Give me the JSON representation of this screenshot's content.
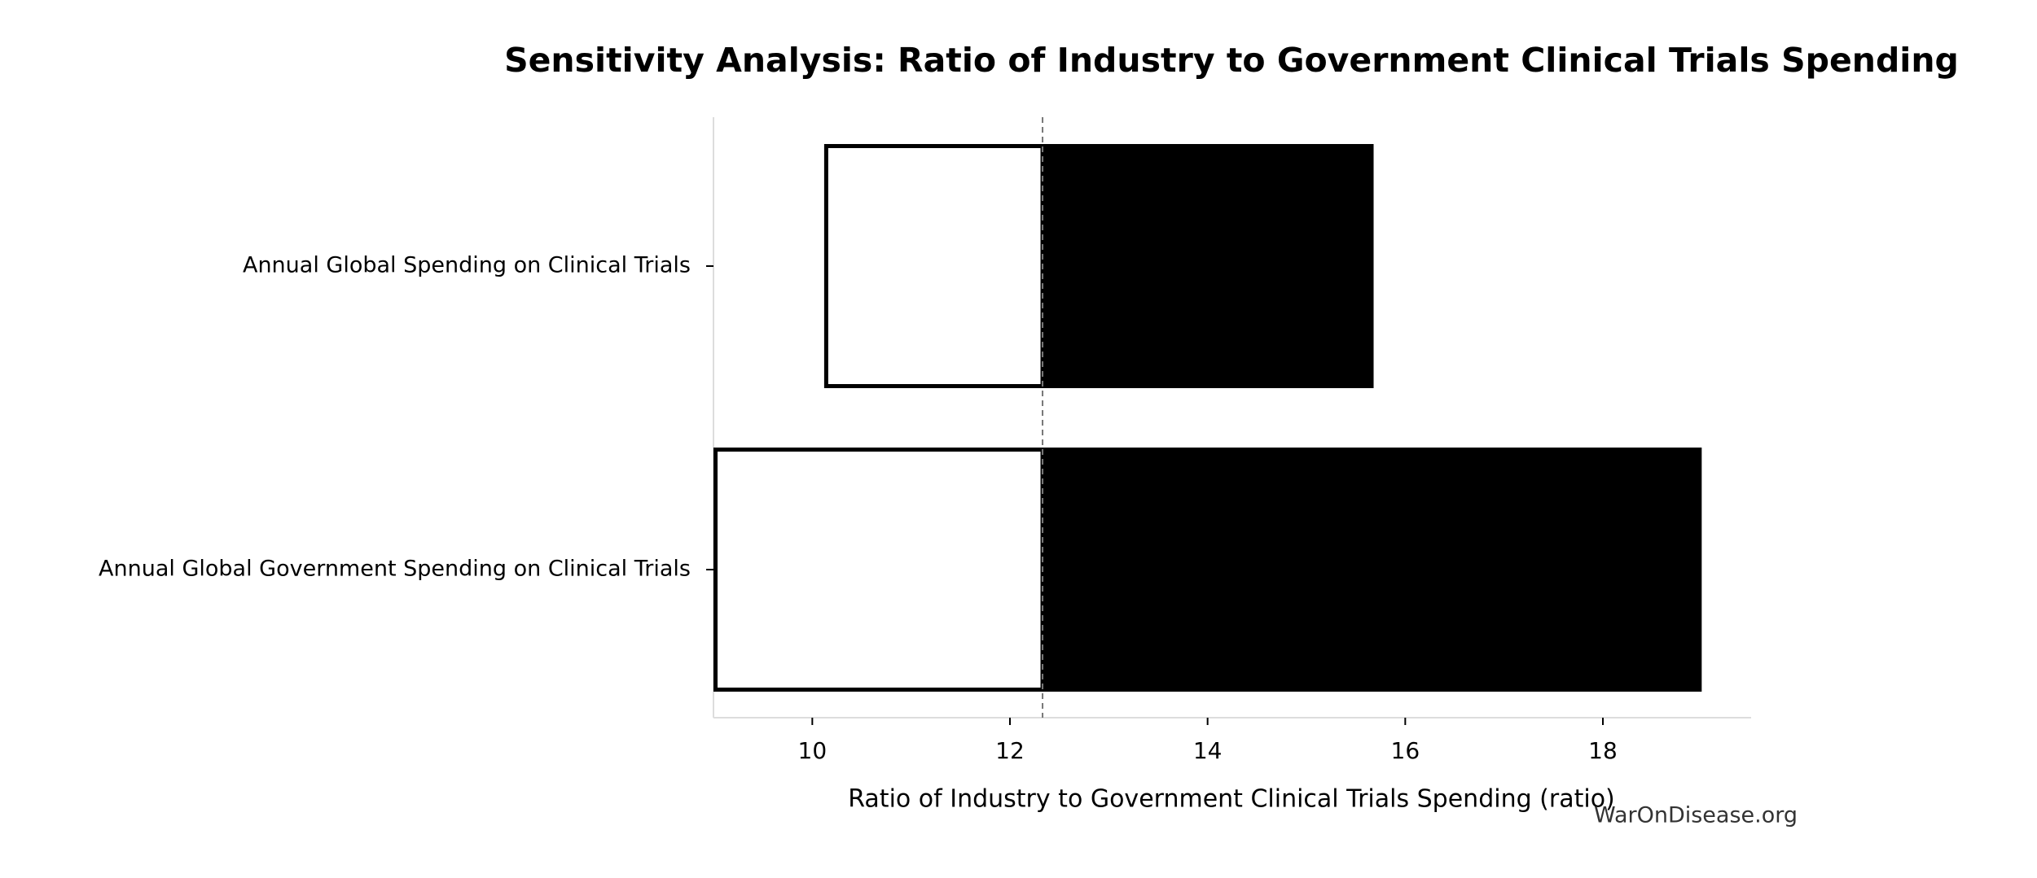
{
  "chart_data": {
    "type": "tornado",
    "title": "Sensitivity Analysis: Ratio of Industry to Government Clinical Trials Spending",
    "xlabel": "Ratio of Industry to Government Clinical Trials Spending (ratio)",
    "categories": [
      "Annual Global Spending on Clinical Trials",
      "Annual Global Government Spending on Clinical Trials"
    ],
    "baseline": 12.33,
    "low_values": [
      10.12,
      9.0
    ],
    "high_values": [
      15.68,
      19.0
    ],
    "low_color": "#ffffff",
    "high_color": "#000000",
    "xlim": [
      9.0,
      19.5
    ],
    "xticks": [
      10,
      12,
      14,
      16,
      18
    ],
    "watermark": "WarOnDisease.org"
  }
}
